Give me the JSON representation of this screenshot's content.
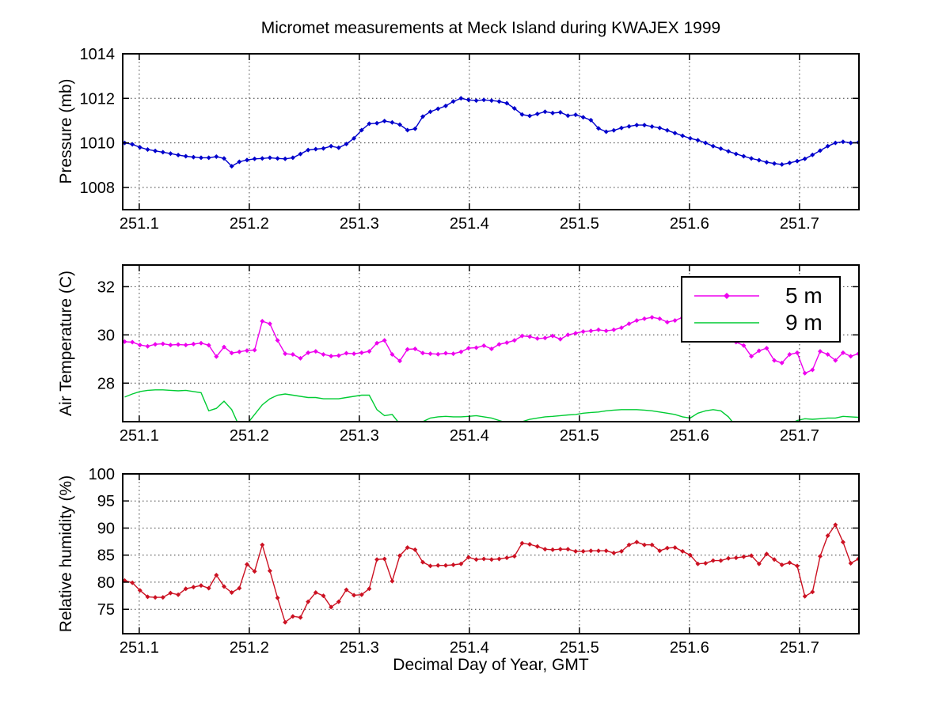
{
  "figure": {
    "title": "Micromet measurements at Meck Island during KWAJEX 1999",
    "xlabel": "Decimal Day of Year, GMT",
    "background_color": "#ffffff"
  },
  "legend": {
    "entries": [
      {
        "label": "5 m",
        "color": "#ee00ee",
        "marker": "diamond"
      },
      {
        "label": "9 m",
        "color": "#00cc33",
        "marker": "none"
      }
    ]
  },
  "colors": {
    "pressure": "#0000cc",
    "temp_5m": "#ee00ee",
    "temp_9m": "#00cc33",
    "humidity": "#cc1122",
    "grid": "#3a3a3a",
    "axis": "#000000"
  },
  "chart_data": [
    {
      "type": "line",
      "ylabel": "Pressure (mb)",
      "xlim": [
        251.085,
        251.754
      ],
      "ylim": [
        1007,
        1014
      ],
      "xticks": [
        251.1,
        251.2,
        251.3,
        251.4,
        251.5,
        251.6,
        251.7
      ],
      "xtick_labels": [
        "251.1",
        "251.2",
        "251.3",
        "251.4",
        "251.5",
        "251.6",
        "251.7"
      ],
      "yticks": [
        1008,
        1010,
        1012,
        1014
      ],
      "ytick_labels": [
        "1008",
        "1010",
        "1012",
        "1014"
      ],
      "grid": true,
      "x_start": 251.0868,
      "x_step": 0.0069444,
      "series": [
        {
          "name": "pressure",
          "color": "#0000cc",
          "marker": "diamond",
          "values": [
            1010.0,
            1009.93,
            1009.8,
            1009.7,
            1009.64,
            1009.58,
            1009.52,
            1009.45,
            1009.4,
            1009.36,
            1009.33,
            1009.33,
            1009.38,
            1009.3,
            1008.95,
            1009.15,
            1009.23,
            1009.28,
            1009.3,
            1009.33,
            1009.3,
            1009.28,
            1009.33,
            1009.5,
            1009.68,
            1009.72,
            1009.75,
            1009.85,
            1009.78,
            1009.95,
            1010.2,
            1010.57,
            1010.86,
            1010.88,
            1010.98,
            1010.92,
            1010.82,
            1010.57,
            1010.63,
            1011.18,
            1011.4,
            1011.53,
            1011.66,
            1011.86,
            1012.0,
            1011.93,
            1011.9,
            1011.93,
            1011.9,
            1011.86,
            1011.78,
            1011.55,
            1011.27,
            1011.21,
            1011.3,
            1011.4,
            1011.34,
            1011.37,
            1011.22,
            1011.26,
            1011.15,
            1011.02,
            1010.65,
            1010.5,
            1010.56,
            1010.67,
            1010.74,
            1010.8,
            1010.8,
            1010.73,
            1010.67,
            1010.56,
            1010.44,
            1010.32,
            1010.2,
            1010.12,
            1010.0,
            1009.85,
            1009.74,
            1009.62,
            1009.5,
            1009.4,
            1009.3,
            1009.22,
            1009.13,
            1009.07,
            1009.03,
            1009.1,
            1009.18,
            1009.28,
            1009.46,
            1009.65,
            1009.85,
            1010.0,
            1010.05,
            1010.0,
            1010.02
          ]
        }
      ]
    },
    {
      "type": "line",
      "ylabel": "Air Temperature (C)",
      "xlim": [
        251.085,
        251.754
      ],
      "ylim": [
        26.4,
        32.9
      ],
      "xticks": [
        251.1,
        251.2,
        251.3,
        251.4,
        251.5,
        251.6,
        251.7
      ],
      "xtick_labels": [
        "251.1",
        "251.2",
        "251.3",
        "251.4",
        "251.5",
        "251.6",
        "251.7"
      ],
      "yticks": [
        28,
        30,
        32
      ],
      "ytick_labels": [
        "28",
        "30",
        "32"
      ],
      "grid": true,
      "x_start": 251.0868,
      "x_step": 0.0069444,
      "series": [
        {
          "name": "5 m",
          "color": "#ee00ee",
          "marker": "diamond",
          "values": [
            29.72,
            29.7,
            29.58,
            29.53,
            29.61,
            29.63,
            29.58,
            29.6,
            29.58,
            29.62,
            29.66,
            29.57,
            29.1,
            29.5,
            29.25,
            29.3,
            29.35,
            29.37,
            30.57,
            30.46,
            29.77,
            29.22,
            29.19,
            29.03,
            29.26,
            29.32,
            29.19,
            29.12,
            29.14,
            29.24,
            29.22,
            29.26,
            29.32,
            29.66,
            29.77,
            29.19,
            28.92,
            29.4,
            29.42,
            29.25,
            29.22,
            29.2,
            29.24,
            29.22,
            29.3,
            29.45,
            29.47,
            29.55,
            29.42,
            29.61,
            29.68,
            29.77,
            29.96,
            29.93,
            29.85,
            29.87,
            29.96,
            29.82,
            30.0,
            30.07,
            30.14,
            30.17,
            30.21,
            30.17,
            30.21,
            30.3,
            30.46,
            30.6,
            30.67,
            30.73,
            30.67,
            30.53,
            30.6,
            30.73,
            30.67,
            30.55,
            30.4,
            30.2,
            30.0,
            29.8,
            29.7,
            29.56,
            29.11,
            29.34,
            29.45,
            28.94,
            28.84,
            29.19,
            29.26,
            28.41,
            28.55,
            29.32,
            29.19,
            28.94,
            29.26,
            29.11,
            29.22
          ]
        },
        {
          "name": "9 m",
          "color": "#00cc33",
          "marker": "none",
          "values": [
            27.42,
            27.55,
            27.65,
            27.7,
            27.72,
            27.72,
            27.7,
            27.68,
            27.7,
            27.65,
            27.6,
            26.85,
            26.95,
            27.25,
            26.9,
            26.2,
            26.3,
            26.7,
            27.1,
            27.35,
            27.5,
            27.55,
            27.5,
            27.45,
            27.4,
            27.4,
            27.35,
            27.35,
            27.35,
            27.4,
            27.45,
            27.5,
            27.5,
            26.9,
            26.65,
            26.7,
            26.3,
            26.2,
            26.25,
            26.4,
            26.55,
            26.6,
            26.62,
            26.6,
            26.6,
            26.62,
            26.65,
            26.6,
            26.55,
            26.45,
            26.35,
            26.3,
            26.4,
            26.5,
            26.55,
            26.6,
            26.62,
            26.65,
            26.68,
            26.7,
            26.75,
            26.78,
            26.8,
            26.85,
            26.88,
            26.9,
            26.9,
            26.9,
            26.88,
            26.85,
            26.8,
            26.75,
            26.7,
            26.6,
            26.55,
            26.75,
            26.85,
            26.9,
            26.85,
            26.6,
            26.2,
            26.1,
            26.0,
            26.0,
            26.0,
            26.1,
            26.2,
            26.3,
            26.45,
            26.52,
            26.5,
            26.52,
            26.55,
            26.55,
            26.62,
            26.6,
            26.58
          ]
        }
      ]
    },
    {
      "type": "line",
      "ylabel": "Relative humidity (%)",
      "xlim": [
        251.085,
        251.754
      ],
      "ylim": [
        70.5,
        100
      ],
      "xticks": [
        251.1,
        251.2,
        251.3,
        251.4,
        251.5,
        251.6,
        251.7
      ],
      "xtick_labels": [
        "251.1",
        "251.2",
        "251.3",
        "251.4",
        "251.5",
        "251.6",
        "251.7"
      ],
      "yticks": [
        75,
        80,
        85,
        90,
        95,
        100
      ],
      "ytick_labels": [
        "75",
        "80",
        "85",
        "90",
        "95",
        "100"
      ],
      "grid": true,
      "x_start": 251.0868,
      "x_step": 0.0069444,
      "series": [
        {
          "name": "humidity",
          "color": "#cc1122",
          "marker": "diamond",
          "values": [
            80.3,
            79.9,
            78.5,
            77.3,
            77.2,
            77.2,
            78.0,
            77.7,
            78.8,
            79.1,
            79.4,
            78.9,
            81.3,
            79.2,
            78.1,
            78.9,
            83.3,
            82.0,
            86.9,
            82.1,
            77.1,
            72.6,
            73.7,
            73.5,
            76.4,
            78.1,
            77.5,
            75.4,
            76.4,
            78.6,
            77.6,
            77.7,
            78.8,
            84.2,
            84.3,
            80.2,
            84.9,
            86.4,
            86.0,
            83.7,
            83.0,
            83.1,
            83.1,
            83.2,
            83.4,
            84.6,
            84.2,
            84.3,
            84.2,
            84.3,
            84.5,
            84.8,
            87.2,
            87.0,
            86.6,
            86.1,
            86.0,
            86.1,
            86.1,
            85.7,
            85.7,
            85.8,
            85.8,
            85.8,
            85.4,
            85.7,
            86.9,
            87.4,
            86.9,
            86.9,
            85.8,
            86.3,
            86.4,
            85.7,
            85.0,
            83.4,
            83.5,
            84.0,
            84.0,
            84.4,
            84.5,
            84.7,
            84.9,
            83.4,
            85.2,
            84.2,
            83.2,
            83.6,
            83.0,
            77.4,
            78.2,
            84.8,
            88.6,
            90.6,
            87.4,
            83.5,
            84.3
          ]
        }
      ]
    }
  ]
}
